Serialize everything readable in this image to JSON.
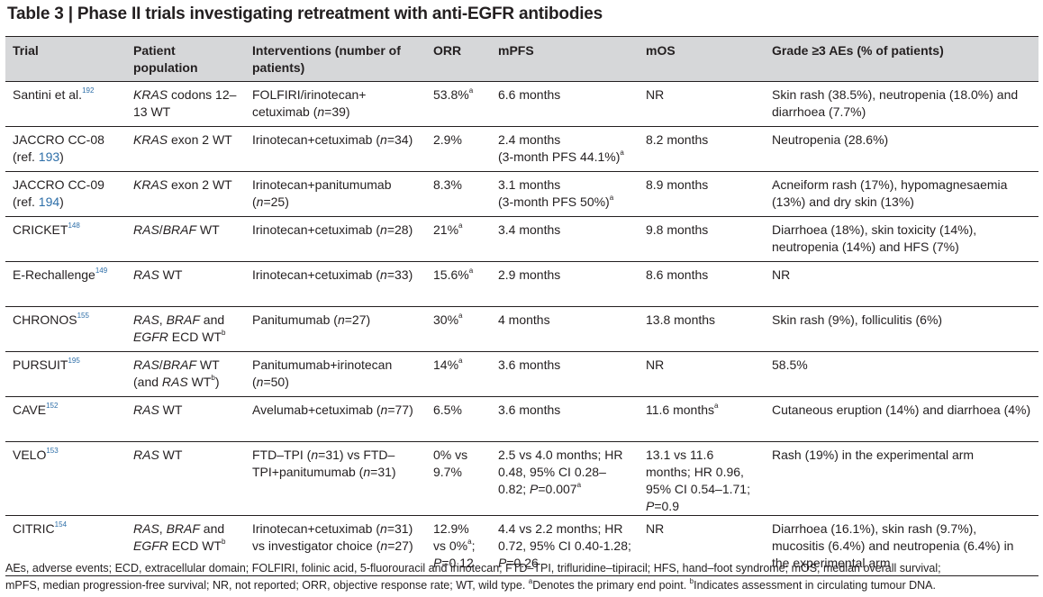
{
  "title": "Table 3 | Phase II trials investigating retreatment with anti-EGFR antibodies",
  "headers": {
    "trial": "Trial",
    "population": "Patient population",
    "interventions": "Interventions (number of patients)",
    "orr": "ORR",
    "mpfs": "mPFS",
    "mos": "mOS",
    "aes": "Grade ≥3 AEs (% of patients)"
  },
  "rows": [
    {
      "trial": {
        "name": "Santini et al.",
        "sup": "192"
      },
      "population": {
        "ital": "KRAS",
        "rest": " codons 12–13 WT"
      },
      "interventions": {
        "text": "FOLFIRI/irinotecan+ cetuximab (",
        "n": "n",
        "after": "=39)"
      },
      "orr": {
        "text": "53.8%",
        "sup": "a"
      },
      "mpfs": {
        "text": "6.6 months"
      },
      "mos": {
        "text": "NR"
      },
      "aes": "Skin rash (38.5%), neutropenia (18.0%) and diarrhoea (7.7%)"
    },
    {
      "trial": {
        "name": "JACCRO CC-08",
        "ref_pre": "(ref. ",
        "ref": "193",
        "ref_post": ")"
      },
      "population": {
        "ital": "KRAS",
        "rest": " exon 2 WT"
      },
      "interventions": {
        "text": "Irinotecan+cetuximab (",
        "n": "n",
        "after": "=34)"
      },
      "orr": {
        "text": "2.9%"
      },
      "mpfs": {
        "text": "2.4 months",
        "line2": "(3-month PFS 44.1%)",
        "sup": "a"
      },
      "mos": {
        "text": "8.2 months"
      },
      "aes": "Neutropenia (28.6%)"
    },
    {
      "trial": {
        "name": "JACCRO CC-09",
        "ref_pre": "(ref. ",
        "ref": "194",
        "ref_post": ")"
      },
      "population": {
        "ital": "KRAS",
        "rest": " exon 2 WT"
      },
      "interventions": {
        "text": "Irinotecan+panitumumab (",
        "n": "n",
        "after": "=25)"
      },
      "orr": {
        "text": "8.3%"
      },
      "mpfs": {
        "text": "3.1 months",
        "line2": "(3-month PFS 50%)",
        "sup": "a"
      },
      "mos": {
        "text": "8.9 months"
      },
      "aes": "Acneiform rash (17%), hypomagnesaemia (13%) and dry skin (13%)"
    },
    {
      "trial": {
        "name": "CRICKET",
        "sup": "148"
      },
      "population": {
        "ital": "RAS",
        "mid": "/",
        "ital2": "BRAF",
        "rest": " WT"
      },
      "interventions": {
        "text": "Irinotecan+cetuximab (",
        "n": "n",
        "after": "=28)"
      },
      "orr": {
        "text": "21%",
        "sup": "a"
      },
      "mpfs": {
        "text": "3.4 months"
      },
      "mos": {
        "text": "9.8 months"
      },
      "aes": "Diarrhoea (18%), skin toxicity (14%), neutropenia (14%) and HFS (7%)"
    },
    {
      "trial": {
        "name": "E-Rechallenge",
        "sup": "149"
      },
      "population": {
        "ital": "RAS",
        "rest": " WT"
      },
      "interventions": {
        "text": "Irinotecan+cetuximab (",
        "n": "n",
        "after": "=33)"
      },
      "orr": {
        "text": "15.6%",
        "sup": "a"
      },
      "mpfs": {
        "text": "2.9 months"
      },
      "mos": {
        "text": "8.6 months"
      },
      "aes": "NR"
    },
    {
      "trial": {
        "name": "CHRONOS",
        "sup": "155"
      },
      "population": {
        "ital": "RAS",
        "mid": ", ",
        "ital2": "BRAF",
        "rest": " and ",
        "ital3": "EGFR",
        "rest2": " ECD WT",
        "sup": "b"
      },
      "interventions": {
        "text": "Panitumumab (",
        "n": "n",
        "after": "=27)"
      },
      "orr": {
        "text": "30%",
        "sup": "a"
      },
      "mpfs": {
        "text": "4 months"
      },
      "mos": {
        "text": "13.8 months"
      },
      "aes": "Skin rash (9%), folliculitis (6%)"
    },
    {
      "trial": {
        "name": "PURSUIT",
        "sup": "195"
      },
      "population": {
        "ital": "RAS",
        "mid": "/",
        "ital2": "BRAF",
        "rest": " WT (and ",
        "ital3": "RAS",
        "rest2": " WT",
        "sup": "b",
        "rest3": ")"
      },
      "interventions": {
        "text": "Panitumumab+irinotecan (",
        "n": "n",
        "after": "=50)"
      },
      "orr": {
        "text": "14%",
        "sup": "a"
      },
      "mpfs": {
        "text": "3.6 months"
      },
      "mos": {
        "text": "NR"
      },
      "aes": "58.5%"
    },
    {
      "trial": {
        "name": "CAVE",
        "sup": "152"
      },
      "population": {
        "ital": "RAS",
        "rest": " WT"
      },
      "interventions": {
        "text": "Avelumab+cetuximab (",
        "n": "n",
        "after": "=77)"
      },
      "orr": {
        "text": "6.5%"
      },
      "mpfs": {
        "text": "3.6 months"
      },
      "mos": {
        "text": "11.6 months",
        "sup": "a"
      },
      "aes": "Cutaneous eruption (14%) and diarrhoea (4%)"
    },
    {
      "trial": {
        "name": "VELO",
        "sup": "153"
      },
      "population": {
        "ital": "RAS",
        "rest": " WT"
      },
      "interventions": {
        "text": "FTD–TPI (",
        "n": "n",
        "after": "=31) vs FTD–TPI+panitumumab (",
        "n2": "n",
        "after2": "=31)"
      },
      "orr": {
        "text": "0% vs 9.7%"
      },
      "mpfs": {
        "text": "2.5 vs 4.0 months; HR 0.48, 95% CI 0.28–0.82; ",
        "p": "P",
        "after": "=0.007",
        "sup": "a"
      },
      "mos": {
        "text": "13.1 vs 11.6 months; HR 0.96, 95% CI 0.54–1.71; ",
        "p": "P",
        "after": "=0.9"
      },
      "aes": "Rash (19%) in the experimental arm"
    },
    {
      "trial": {
        "name": "CITRIC",
        "sup": "154"
      },
      "population": {
        "ital": "RAS",
        "mid": ", ",
        "ital2": "BRAF",
        "rest": " and ",
        "ital3": "EGFR",
        "rest2": " ECD WT",
        "sup": "b"
      },
      "interventions": {
        "text": "Irinotecan+cetuximab (",
        "n": "n",
        "after": "=31) vs investigator choice (",
        "n2": "n",
        "after2": "=27)"
      },
      "orr": {
        "text": "12.9% vs 0%",
        "sup": "a",
        "after": "; ",
        "p": "P",
        "after2": "=0.12"
      },
      "mpfs": {
        "text": "4.4 vs 2.2 months; HR 0.72, 95% CI 0.40-1.28; ",
        "p": "P",
        "after": "=0.26"
      },
      "mos": {
        "text": "NR"
      },
      "aes": "Diarrhoea (16.1%), skin rash (9.7%), mucositis (6.4%) and neutropenia (6.4%) in the experimental arm"
    }
  ],
  "footnote": {
    "line1": "AEs, adverse events; ECD, extracellular domain; FOLFIRI, folinic acid, 5-fluorouracil and irinotecan; FTD–TPI, trifluridine–tipiracil; HFS, hand–foot syndrome; mOS, median overall survival;",
    "line2_pre": "mPFS, median progression-free survival; NR, not reported; ORR, objective response rate; WT, wild type. ",
    "sup_a": "a",
    "line2_mid": "Denotes the primary end point. ",
    "sup_b": "b",
    "line2_post": "Indicates assessment in circulating tumour DNA."
  }
}
